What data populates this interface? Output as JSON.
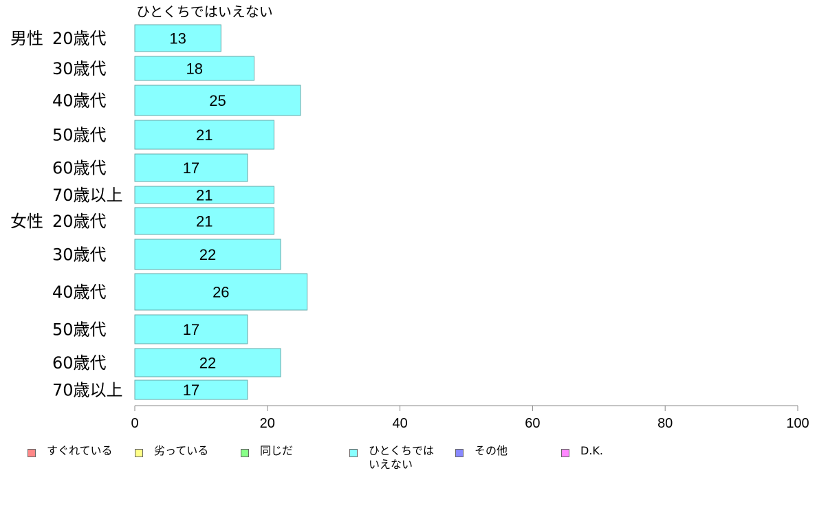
{
  "chart_data": {
    "type": "bar",
    "orientation": "horizontal",
    "title": "ひとくちではいえない",
    "groups": [
      {
        "label": "男性",
        "rows": [
          {
            "category": "20歳代",
            "value": 13
          },
          {
            "category": "30歳代",
            "value": 18
          },
          {
            "category": "40歳代",
            "value": 25
          },
          {
            "category": "50歳代",
            "value": 21
          },
          {
            "category": "60歳代",
            "value": 17
          },
          {
            "category": "70歳以上",
            "value": 21
          }
        ]
      },
      {
        "label": "女性",
        "rows": [
          {
            "category": "20歳代",
            "value": 21
          },
          {
            "category": "30歳代",
            "value": 22
          },
          {
            "category": "40歳代",
            "value": 26
          },
          {
            "category": "50歳代",
            "value": 17
          },
          {
            "category": "60歳代",
            "value": 22
          },
          {
            "category": "70歳以上",
            "value": 17
          }
        ]
      }
    ],
    "xlim": [
      0,
      100
    ],
    "xticks": [
      0,
      20,
      40,
      60,
      80,
      100
    ],
    "grid": false,
    "bar_color": "#88ffff",
    "bar_border_color": "#66aaaa",
    "legend": {
      "placement": "bottom",
      "items": [
        {
          "label": "すぐれている",
          "color": "#ff8888"
        },
        {
          "label": "劣っている",
          "color": "#ffff88"
        },
        {
          "label": "同じだ",
          "color": "#88ff88"
        },
        {
          "label": "ひとくちでは\nいえない",
          "color": "#88ffff"
        },
        {
          "label": "その他",
          "color": "#8888ff"
        },
        {
          "label": "D.K.",
          "color": "#ff88ff"
        }
      ]
    }
  }
}
